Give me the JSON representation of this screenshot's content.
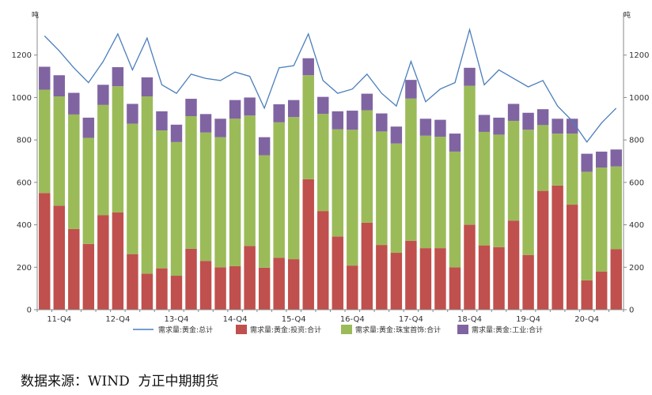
{
  "source_text": "数据来源：WIND  方正中期期货",
  "chart_data": {
    "type": "bar",
    "stacked": true,
    "title": "",
    "ylabel_left": "吨",
    "ylabel_right": "吨",
    "ylim": [
      0,
      1400
    ],
    "yticks": [
      0,
      200,
      400,
      600,
      800,
      1000,
      1200
    ],
    "x_tick_labels": [
      {
        "index": 1,
        "label": "11-Q4"
      },
      {
        "index": 5,
        "label": "12-Q4"
      },
      {
        "index": 9,
        "label": "13-Q4"
      },
      {
        "index": 13,
        "label": "14-Q4"
      },
      {
        "index": 17,
        "label": "15-Q4"
      },
      {
        "index": 21,
        "label": "16-Q4"
      },
      {
        "index": 25,
        "label": "17-Q4"
      },
      {
        "index": 29,
        "label": "18-Q4"
      },
      {
        "index": 33,
        "label": "19-Q4"
      },
      {
        "index": 37,
        "label": "20-Q4"
      }
    ],
    "colors": {
      "total": "#4a7ebb",
      "investment": "#c0504d",
      "jewelry": "#9bbb59",
      "industry": "#8064a2"
    },
    "series": [
      {
        "name": "需求量:黄金:投资:合计",
        "key": "investment",
        "kind": "bar",
        "values": [
          550,
          490,
          380,
          310,
          445,
          458,
          262,
          170,
          195,
          160,
          287,
          230,
          200,
          205,
          300,
          198,
          245,
          238,
          615,
          465,
          345,
          208,
          410,
          305,
          268,
          325,
          290,
          290,
          200,
          400,
          303,
          295,
          420,
          258,
          560,
          585,
          495,
          138,
          180,
          285
        ]
      },
      {
        "name": "需求量:黄金:珠宝首饰:合计",
        "key": "jewelry",
        "kind": "bar",
        "values": [
          487,
          515,
          540,
          500,
          520,
          595,
          615,
          835,
          650,
          630,
          625,
          605,
          613,
          695,
          615,
          530,
          638,
          670,
          490,
          458,
          505,
          640,
          530,
          535,
          515,
          670,
          530,
          525,
          545,
          655,
          535,
          530,
          470,
          590,
          310,
          245,
          335,
          512,
          490,
          390
        ]
      },
      {
        "name": "需求量:黄金:工业:合计",
        "key": "industry",
        "kind": "bar",
        "values": [
          108,
          100,
          102,
          95,
          95,
          90,
          93,
          90,
          90,
          82,
          82,
          87,
          87,
          88,
          85,
          85,
          85,
          80,
          80,
          80,
          85,
          90,
          78,
          85,
          80,
          88,
          80,
          80,
          85,
          85,
          80,
          80,
          80,
          80,
          75,
          70,
          70,
          85,
          75,
          80
        ]
      },
      {
        "name": "需求量:黄金:总计",
        "key": "total",
        "kind": "line",
        "values": [
          1290,
          1220,
          1140,
          1070,
          1170,
          1300,
          1130,
          1280,
          1060,
          1020,
          1110,
          1090,
          1080,
          1120,
          1100,
          950,
          1140,
          1150,
          1300,
          1080,
          1020,
          1040,
          1110,
          1020,
          960,
          1170,
          980,
          1040,
          1070,
          1320,
          1060,
          1130,
          1090,
          1050,
          1080,
          960,
          890,
          790,
          880,
          950
        ]
      }
    ]
  }
}
